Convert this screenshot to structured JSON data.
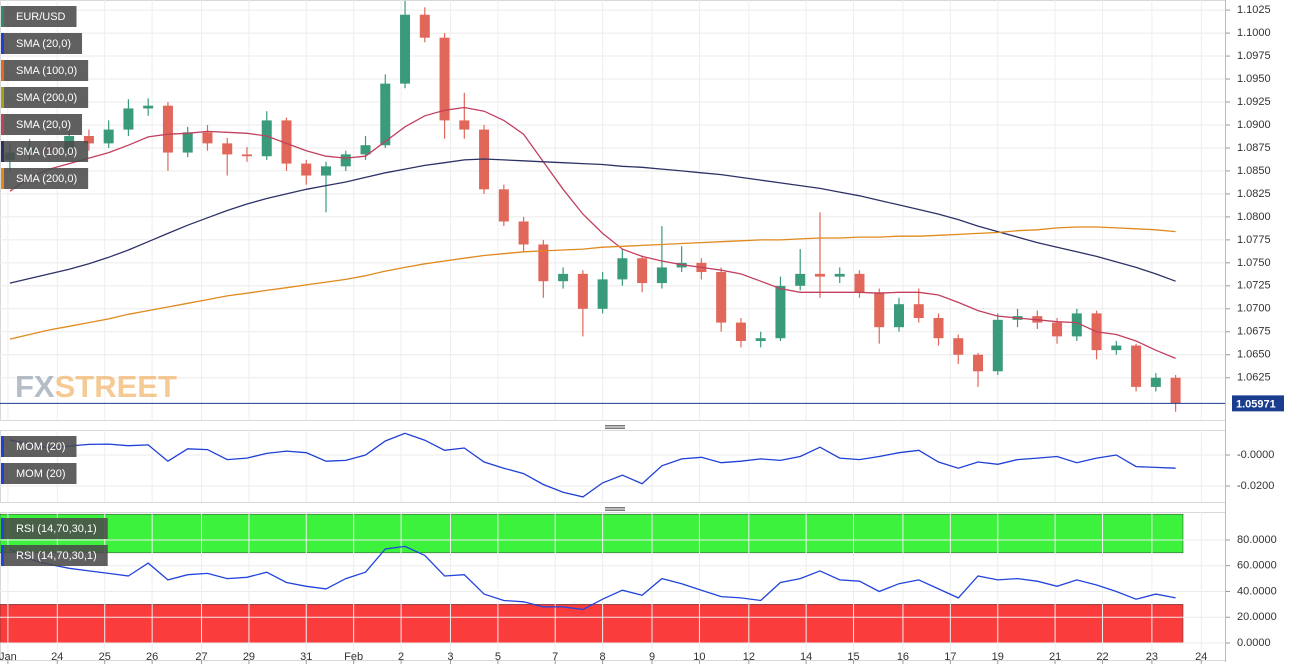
{
  "chart_data": [
    {
      "type": "candlestick",
      "legend_items": [
        {
          "label": "EUR/USD",
          "color": "#2e8b6f"
        },
        {
          "label": "SMA (20,0)",
          "color": "#1f3fd6"
        },
        {
          "label": "SMA (100,0)",
          "color": "#e06a1e"
        },
        {
          "label": "SMA (200,0)",
          "color": "#a8a020"
        },
        {
          "label": "SMA (20,0)",
          "color": "#c2405e"
        },
        {
          "label": "SMA (100,0)",
          "color": "#2d3266"
        },
        {
          "label": "SMA (200,0)",
          "color": "#e08a1e"
        }
      ],
      "watermark": [
        "FX",
        "STREET"
      ],
      "up_color": "#3a9a7c",
      "down_color": "#e0675a",
      "open": [
        1.0862,
        1.087,
        1.0875,
        1.0872,
        1.0888,
        1.088,
        1.0895,
        1.0918,
        1.0921,
        1.087,
        1.0892,
        1.088,
        1.0868,
        1.0866,
        1.0905,
        1.0858,
        1.0845,
        1.0855,
        1.0868,
        1.0878,
        1.0945,
        1.102,
        1.0995,
        1.0905,
        1.0895,
        1.083,
        1.0795,
        1.077,
        1.073,
        1.0738,
        1.07,
        1.0732,
        1.0755,
        1.0728,
        1.0745,
        1.075,
        1.074,
        1.0685,
        1.0665,
        1.0668,
        1.0725,
        1.0738,
        1.0735,
        1.0738,
        1.0718,
        1.068,
        1.0705,
        1.069,
        1.0668,
        1.065,
        1.0632,
        1.0688,
        1.0692,
        1.0685,
        1.067,
        1.0695,
        1.0655,
        1.066,
        1.0615,
        1.0625
      ],
      "high": [
        1.088,
        1.0885,
        1.0882,
        1.0897,
        1.0895,
        1.0905,
        1.0928,
        1.0929,
        1.0925,
        1.0898,
        1.09,
        1.0886,
        1.0876,
        1.0915,
        1.0908,
        1.0862,
        1.086,
        1.0872,
        1.0888,
        1.0955,
        1.1035,
        1.1028,
        1.1,
        1.0935,
        1.09,
        1.0835,
        1.08,
        1.0775,
        1.0745,
        1.0742,
        1.074,
        1.0765,
        1.0758,
        1.079,
        1.0768,
        1.0755,
        1.0745,
        1.069,
        1.0675,
        1.0735,
        1.0765,
        1.0805,
        1.0745,
        1.0742,
        1.0722,
        1.0712,
        1.0722,
        1.0695,
        1.0672,
        1.0652,
        1.0695,
        1.07,
        1.0698,
        1.069,
        1.07,
        1.0698,
        1.0665,
        1.0662,
        1.063,
        1.0628
      ],
      "low": [
        1.085,
        1.0862,
        1.0865,
        1.0866,
        1.0872,
        1.0875,
        1.0888,
        1.091,
        1.085,
        1.0865,
        1.0872,
        1.0845,
        1.086,
        1.0862,
        1.085,
        1.0835,
        1.0805,
        1.085,
        1.0862,
        1.0875,
        1.094,
        1.099,
        1.0885,
        1.0885,
        1.0825,
        1.079,
        1.0762,
        1.0712,
        1.0722,
        1.067,
        1.0695,
        1.0725,
        1.0718,
        1.0722,
        1.074,
        1.0732,
        1.0675,
        1.0658,
        1.0658,
        1.0665,
        1.072,
        1.0712,
        1.0728,
        1.0712,
        1.0662,
        1.0675,
        1.0685,
        1.066,
        1.064,
        1.0615,
        1.0628,
        1.068,
        1.0678,
        1.0662,
        1.0665,
        1.0645,
        1.065,
        1.061,
        1.061,
        1.0588
      ],
      "close": [
        1.087,
        1.0875,
        1.0872,
        1.0888,
        1.088,
        1.0895,
        1.0918,
        1.0921,
        1.087,
        1.0892,
        1.088,
        1.0868,
        1.0866,
        1.0905,
        1.0858,
        1.0845,
        1.0855,
        1.0868,
        1.0878,
        1.0945,
        1.102,
        1.0995,
        1.0905,
        1.0895,
        1.083,
        1.0795,
        1.077,
        1.073,
        1.0738,
        1.07,
        1.0732,
        1.0755,
        1.0728,
        1.0745,
        1.075,
        1.074,
        1.0685,
        1.0665,
        1.0668,
        1.0725,
        1.0738,
        1.0735,
        1.0738,
        1.0718,
        1.068,
        1.0705,
        1.069,
        1.0668,
        1.065,
        1.0632,
        1.0688,
        1.0692,
        1.0685,
        1.067,
        1.0695,
        1.0655,
        1.066,
        1.0615,
        1.0625,
        1.0597
      ],
      "series": [
        {
          "color": "#c2405e",
          "values": [
            1.0828,
            1.0843,
            1.0852,
            1.0858,
            1.0864,
            1.087,
            1.0878,
            1.0887,
            1.089,
            1.0891,
            1.0893,
            1.0892,
            1.0891,
            1.0888,
            1.088,
            1.0872,
            1.0866,
            1.0864,
            1.0866,
            1.0882,
            1.0898,
            1.091,
            1.0916,
            1.0919,
            1.0915,
            1.0905,
            1.089,
            1.086,
            1.083,
            1.0803,
            1.0782,
            1.0765,
            1.0757,
            1.0752,
            1.0748,
            1.0745,
            1.0742,
            1.0738,
            1.073,
            1.0722,
            1.0718,
            1.0718,
            1.0718,
            1.0718,
            1.0717,
            1.0718,
            1.0718,
            1.0715,
            1.0707,
            1.0698,
            1.0692,
            1.069,
            1.0688,
            1.0686,
            1.0685,
            1.0675,
            1.0672,
            1.0665,
            1.0655,
            1.0646
          ]
        },
        {
          "color": "#2d3266",
          "values": [
            1.0728,
            1.0733,
            1.0738,
            1.0743,
            1.0749,
            1.0756,
            1.0764,
            1.0773,
            1.0782,
            1.0791,
            1.0799,
            1.0807,
            1.0814,
            1.082,
            1.0825,
            1.083,
            1.0834,
            1.0838,
            1.0843,
            1.0848,
            1.0852,
            1.0856,
            1.0859,
            1.0862,
            1.0863,
            1.0862,
            1.0861,
            1.086,
            1.0859,
            1.0858,
            1.0857,
            1.0855,
            1.0854,
            1.0852,
            1.085,
            1.0848,
            1.0846,
            1.0843,
            1.084,
            1.0837,
            1.0834,
            1.0831,
            1.0827,
            1.0823,
            1.0818,
            1.0813,
            1.0808,
            1.0803,
            1.0797,
            1.079,
            1.0784,
            1.0778,
            1.0772,
            1.0767,
            1.0762,
            1.0757,
            1.0751,
            1.0745,
            1.0738,
            1.073
          ]
        },
        {
          "color": "#e08a1e",
          "values": [
            1.0667,
            1.0672,
            1.0677,
            1.0681,
            1.0685,
            1.0689,
            1.0694,
            1.0698,
            1.0702,
            1.0706,
            1.071,
            1.0714,
            1.0717,
            1.072,
            1.0723,
            1.0726,
            1.0729,
            1.0732,
            1.0736,
            1.0741,
            1.0745,
            1.0749,
            1.0752,
            1.0755,
            1.0758,
            1.076,
            1.0762,
            1.0763,
            1.0764,
            1.0765,
            1.0767,
            1.0768,
            1.0769,
            1.077,
            1.0771,
            1.0772,
            1.0773,
            1.0774,
            1.0775,
            1.0775,
            1.0776,
            1.0777,
            1.0777,
            1.0778,
            1.0778,
            1.0779,
            1.0779,
            1.078,
            1.0781,
            1.0782,
            1.0783,
            1.0785,
            1.0786,
            1.0788,
            1.0789,
            1.0789,
            1.0788,
            1.0787,
            1.0786,
            1.0784
          ]
        }
      ],
      "last_price": 1.05971,
      "last_price_color": "#1a3d8f",
      "ylim": [
        1.0579,
        1.1036
      ],
      "yticks": [
        1.1025,
        {
          "value": 1.1,
          "label": "1.1000"
        },
        1.0975,
        {
          "value": 1.095,
          "label": "1.0950"
        },
        1.0925,
        {
          "value": 1.09,
          "label": "1.0900"
        },
        1.0875,
        {
          "value": 1.085,
          "label": "1.0850"
        },
        1.0825,
        {
          "value": 1.08,
          "label": "1.0800"
        },
        1.0775,
        {
          "value": 1.075,
          "label": "1.0750"
        },
        1.0725,
        {
          "value": 1.07,
          "label": "1.0700"
        },
        1.0675,
        {
          "value": 1.065,
          "label": "1.0650"
        },
        1.0625
      ],
      "xlim": [
        0,
        62
      ],
      "xticks": [
        {
          "value": 0.4,
          "label": "Jan"
        },
        {
          "value": 2.9,
          "label": "24"
        },
        {
          "value": 5.3,
          "label": "25"
        },
        {
          "value": 7.7,
          "label": "26"
        },
        {
          "value": 10.2,
          "label": "27"
        },
        {
          "value": 12.6,
          "label": "29"
        },
        {
          "value": 15.5,
          "label": "31"
        },
        {
          "value": 17.9,
          "label": "Feb"
        },
        {
          "value": 20.3,
          "label": "2"
        },
        {
          "value": 22.8,
          "label": "3"
        },
        {
          "value": 25.2,
          "label": "5"
        },
        {
          "value": 28.1,
          "label": "7"
        },
        {
          "value": 30.5,
          "label": "8"
        },
        {
          "value": 33.0,
          "label": "9"
        },
        {
          "value": 35.4,
          "label": "10"
        },
        {
          "value": 37.9,
          "label": "12"
        },
        {
          "value": 40.8,
          "label": "14"
        },
        {
          "value": 43.2,
          "label": "15"
        },
        {
          "value": 45.7,
          "label": "16"
        },
        {
          "value": 48.1,
          "label": "17"
        },
        {
          "value": 50.5,
          "label": "19"
        },
        {
          "value": 53.4,
          "label": "21"
        },
        {
          "value": 55.8,
          "label": "22"
        },
        {
          "value": 58.3,
          "label": "23"
        },
        {
          "value": 60.8,
          "label": "24"
        }
      ],
      "grid": true
    },
    {
      "type": "line",
      "legend_items": [
        {
          "label": "MOM (20)",
          "color": "#1f3fd6"
        },
        {
          "label": "MOM (20)",
          "color": "#1f3fd6"
        }
      ],
      "series": [
        {
          "color": "#1f3fd6",
          "values": [
            0.0097,
            0.007,
            0.0045,
            0.0058,
            0.0068,
            0.007,
            0.006,
            0.0065,
            -0.004,
            0.004,
            0.0035,
            -0.003,
            -0.002,
            0.001,
            0.0025,
            0.0015,
            -0.004,
            -0.0035,
            0.0,
            0.009,
            0.014,
            0.0095,
            0.003,
            0.0045,
            -0.0045,
            -0.0085,
            -0.012,
            -0.019,
            -0.024,
            -0.027,
            -0.018,
            -0.013,
            -0.0185,
            -0.007,
            -0.0025,
            -0.0015,
            -0.005,
            -0.004,
            -0.0025,
            -0.0035,
            -0.001,
            0.005,
            -0.002,
            -0.003,
            -0.001,
            0.0015,
            0.003,
            -0.0045,
            -0.0085,
            -0.0045,
            -0.006,
            -0.003,
            -0.002,
            -0.001,
            -0.005,
            -0.002,
            0.0,
            -0.0075,
            -0.008,
            -0.0085
          ]
        }
      ],
      "ylim": [
        -0.0303,
        0.0161
      ],
      "yticks": [
        {
          "value": 0,
          "label": "-0.0000"
        },
        {
          "value": -0.02,
          "label": "-0.0200"
        }
      ],
      "grid": true
    },
    {
      "type": "line",
      "legend_items": [
        {
          "label": "RSI (14,70,30,1)",
          "color": "#2244dd"
        },
        {
          "label": "RSI (14,70,30,1)",
          "color": "#2244dd"
        }
      ],
      "bands": [
        {
          "from": 70,
          "to": 100,
          "color": "#3cf23c"
        },
        {
          "from": 0,
          "to": 30,
          "color": "#fa3c3c"
        }
      ],
      "series": [
        {
          "color": "#2244dd",
          "values": [
            73,
            65,
            61,
            58,
            56,
            54,
            52,
            62,
            49,
            53,
            54,
            50,
            51,
            55,
            47,
            44,
            42,
            50,
            55,
            73,
            75,
            68,
            52,
            53,
            38,
            33,
            32,
            28,
            28,
            26,
            34,
            41,
            37,
            50,
            46,
            41,
            36,
            35,
            33,
            47,
            50,
            56,
            49,
            48,
            40,
            46,
            49,
            42,
            35,
            52,
            49,
            50,
            48,
            44,
            49,
            45,
            40,
            34,
            38,
            35
          ]
        }
      ],
      "ylim": [
        -13.2,
        101.7
      ],
      "yticks": [
        {
          "value": 80,
          "label": "80.0000"
        },
        {
          "value": 60,
          "label": "60.0000"
        },
        {
          "value": 40,
          "label": "40.0000"
        },
        {
          "value": 20,
          "label": "20.0000"
        },
        {
          "value": 0,
          "label": "0.0000"
        }
      ],
      "grid": true
    }
  ]
}
